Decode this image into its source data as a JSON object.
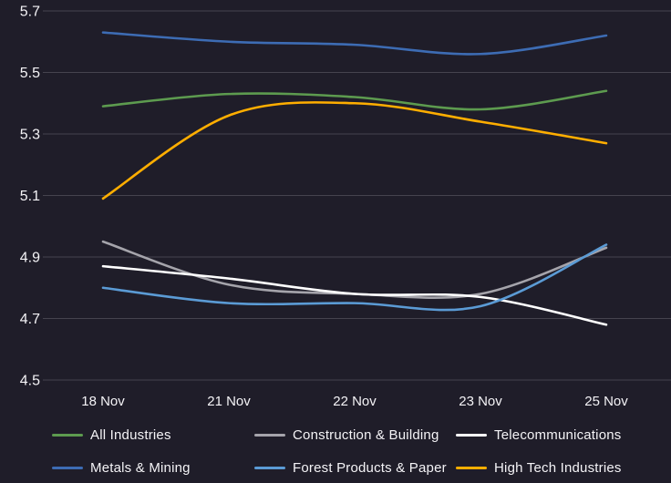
{
  "chart_data": {
    "type": "line",
    "title": "",
    "xlabel": "",
    "ylabel": "",
    "categories": [
      "18 Nov",
      "21 Nov",
      "22 Nov",
      "23 Nov",
      "25 Nov"
    ],
    "series": [
      {
        "name": "All Industries",
        "color": "#5d9b4f",
        "values": [
          5.39,
          5.43,
          5.42,
          5.38,
          5.44
        ]
      },
      {
        "name": "Construction & Building",
        "color": "#a5a4ab",
        "values": [
          4.95,
          4.81,
          4.78,
          4.78,
          4.93
        ]
      },
      {
        "name": "Telecommunications",
        "color": "#ffffff",
        "values": [
          4.87,
          4.83,
          4.78,
          4.77,
          4.68
        ]
      },
      {
        "name": "Metals & Mining",
        "color": "#3d6cb4",
        "values": [
          5.63,
          5.6,
          5.59,
          5.56,
          5.62
        ]
      },
      {
        "name": "Forest Products & Paper",
        "color": "#5b9bd5",
        "values": [
          4.8,
          4.75,
          4.75,
          4.74,
          4.94
        ]
      },
      {
        "name": "High Tech Industries",
        "color": "#ffae00",
        "values": [
          5.09,
          5.36,
          5.4,
          5.34,
          5.27
        ]
      }
    ],
    "ylim": [
      4.5,
      5.7
    ],
    "y_ticks": [
      "5.7",
      "5.5",
      "5.3",
      "5.1",
      "4.9",
      "4.7",
      "4.5"
    ],
    "y_tick_values": [
      5.7,
      5.5,
      5.3,
      5.1,
      4.9,
      4.7,
      4.5
    ],
    "grid": "horizontal",
    "legend_position": "bottom",
    "legend_rows": 2,
    "legend_columns": 3
  },
  "theme": {
    "background": "#1f1d29",
    "grid_color": "#45434e",
    "axis_text_color": "#f4f3f6",
    "legend_text_color": "#f4f3f6"
  }
}
